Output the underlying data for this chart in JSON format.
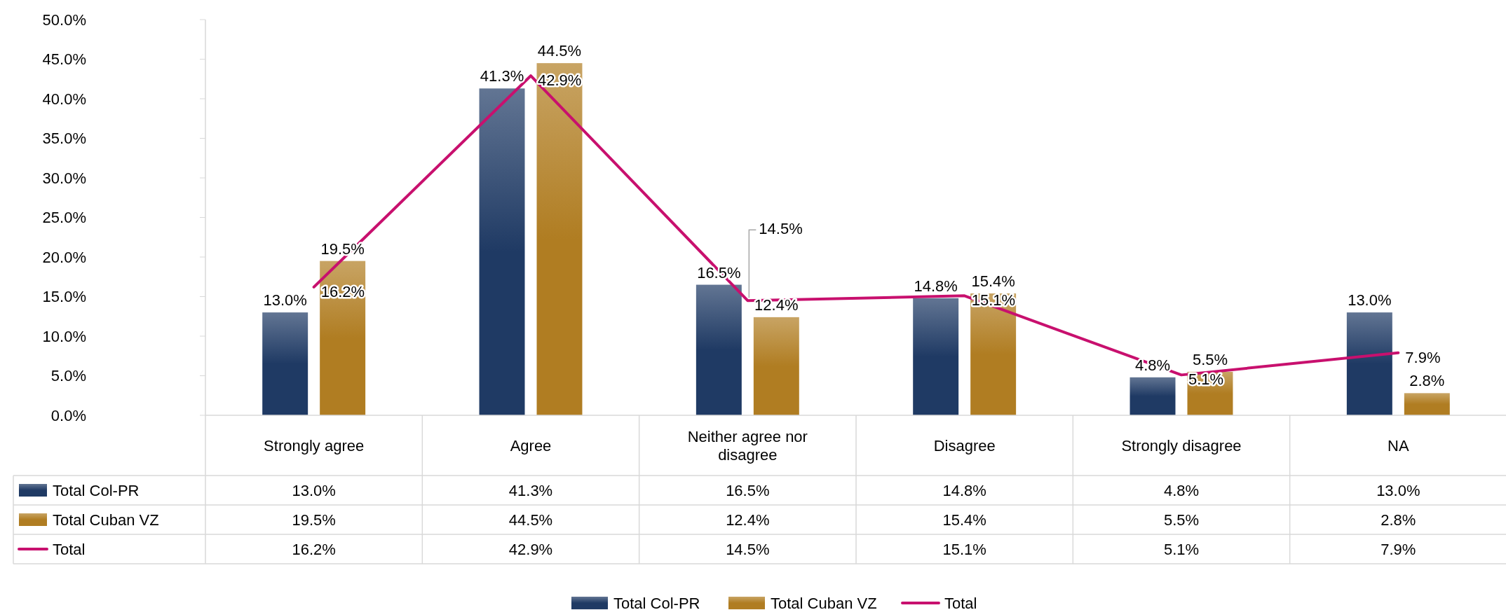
{
  "chart_data": {
    "type": "bar",
    "categories": [
      "Strongly agree",
      "Agree",
      "Neither agree nor disagree",
      "Disagree",
      "Strongly disagree",
      "NA"
    ],
    "series": [
      {
        "name": "Total Col-PR",
        "color": "#1f3a64",
        "values": [
          13.0,
          41.3,
          16.5,
          14.8,
          4.8,
          13.0
        ],
        "value_labels": [
          "13.0%",
          "41.3%",
          "16.5%",
          "14.8%",
          "4.8%",
          "13.0%"
        ]
      },
      {
        "name": "Total Cuban VZ",
        "color": "#b07d22",
        "values": [
          19.5,
          44.5,
          12.4,
          15.4,
          5.5,
          2.8
        ],
        "value_labels": [
          "19.5%",
          "44.5%",
          "12.4%",
          "15.4%",
          "5.5%",
          "2.8%"
        ]
      },
      {
        "name": "Total",
        "type": "line",
        "color": "#c8106e",
        "values": [
          16.2,
          42.9,
          14.5,
          15.1,
          5.1,
          7.9
        ],
        "value_labels": [
          "16.2%",
          "42.9%",
          "14.5%",
          "15.1%",
          "5.1%",
          "7.9%"
        ]
      }
    ],
    "ylim": [
      0,
      50
    ],
    "yticks": [
      {
        "value": 0,
        "label": "0.0%"
      },
      {
        "value": 5,
        "label": "5.0%"
      },
      {
        "value": 10,
        "label": "10.0%"
      },
      {
        "value": 15,
        "label": "15.0%"
      },
      {
        "value": 20,
        "label": "20.0%"
      },
      {
        "value": 25,
        "label": "25.0%"
      },
      {
        "value": 30,
        "label": "30.0%"
      },
      {
        "value": 35,
        "label": "35.0%"
      },
      {
        "value": 40,
        "label": "40.0%"
      },
      {
        "value": 45,
        "label": "45.0%"
      },
      {
        "value": 50,
        "label": "50.0%"
      }
    ],
    "grid": false,
    "legend": "bottom",
    "marker": "none",
    "line_style": "solid"
  }
}
